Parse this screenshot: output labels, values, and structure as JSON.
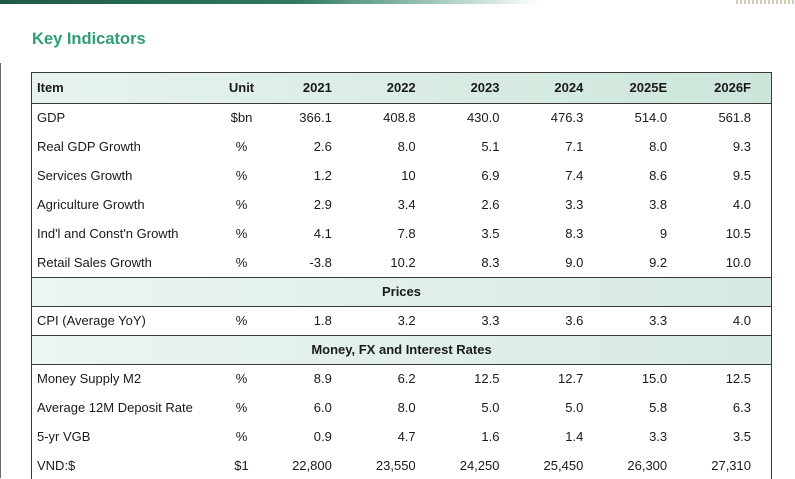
{
  "title": "Key Indicators",
  "header": [
    "Item",
    "Unit",
    "2021",
    "2022",
    "2023",
    "2024",
    "2025E",
    "2026F"
  ],
  "groups": [
    {
      "section": null,
      "rows": [
        [
          "GDP",
          "$bn",
          "366.1",
          "408.8",
          "430.0",
          "476.3",
          "514.0",
          "561.8"
        ],
        [
          "Real GDP Growth",
          "%",
          "2.6",
          "8.0",
          "5.1",
          "7.1",
          "8.0",
          "9.3"
        ],
        [
          "Services Growth",
          "%",
          "1.2",
          "10",
          "6.9",
          "7.4",
          "8.6",
          "9.5"
        ],
        [
          "Agriculture Growth",
          "%",
          "2.9",
          "3.4",
          "2.6",
          "3.3",
          "3.8",
          "4.0"
        ],
        [
          "Ind'l and Const'n Growth",
          "%",
          "4.1",
          "7.8",
          "3.5",
          "8.3",
          "9",
          "10.5"
        ],
        [
          "Retail Sales Growth",
          "%",
          "-3.8",
          "10.2",
          "8.3",
          "9.0",
          "9.2",
          "10.0"
        ]
      ]
    },
    {
      "section": "Prices",
      "rows": [
        [
          "CPI (Average YoY)",
          "%",
          "1.8",
          "3.2",
          "3.3",
          "3.6",
          "3.3",
          "4.0"
        ]
      ]
    },
    {
      "section": "Money, FX and Interest Rates",
      "rows": [
        [
          "Money Supply M2",
          "%",
          "8.9",
          "6.2",
          "12.5",
          "12.7",
          "15.0",
          "12.5"
        ],
        [
          "Average 12M Deposit Rate",
          "%",
          "6.0",
          "8.0",
          "5.0",
          "5.0",
          "5.8",
          "6.3"
        ],
        [
          "5-yr VGB",
          "%",
          "0.9",
          "4.7",
          "1.6",
          "1.4",
          "3.3",
          "3.5"
        ],
        [
          "VND:$",
          "$1",
          "22,800",
          "23,550",
          "24,250",
          "25,450",
          "26,300",
          "27,310"
        ]
      ]
    }
  ]
}
